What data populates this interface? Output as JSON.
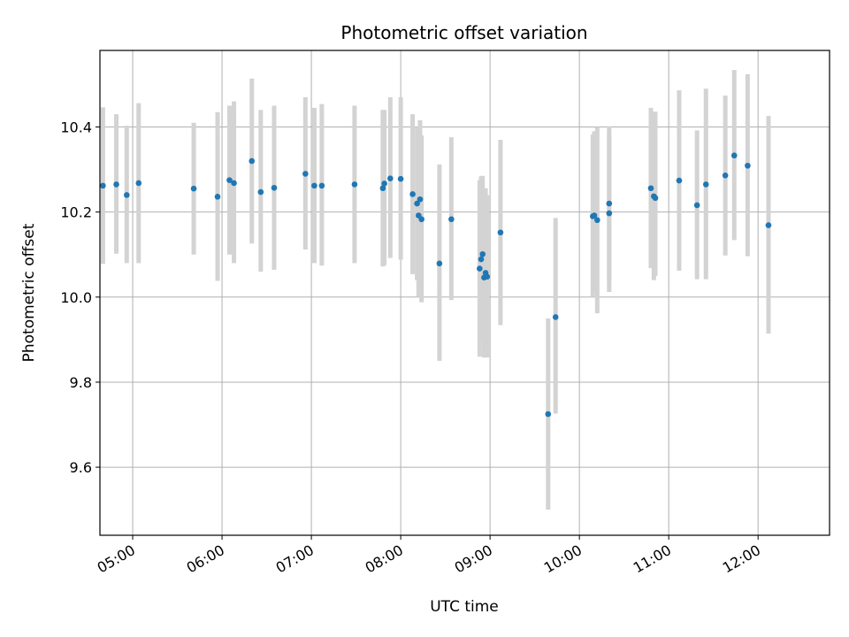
{
  "chart_data": {
    "type": "scatter",
    "title": "Photometric offset variation",
    "xlabel": "UTC time",
    "ylabel": "Photometric offset",
    "xlim": [
      "04:38",
      "12:48"
    ],
    "ylim": [
      9.44,
      10.58
    ],
    "x_ticks": [
      "05:00",
      "06:00",
      "07:00",
      "08:00",
      "09:00",
      "10:00",
      "11:00",
      "12:00"
    ],
    "y_ticks": [
      9.6,
      9.8,
      10.0,
      10.2,
      10.4
    ],
    "y_tick_labels": [
      "9.6",
      "9.8",
      "10.0",
      "10.2",
      "10.4"
    ],
    "grid": true,
    "colors": {
      "point": "#1f77b4",
      "errorbar": "#d3d3d3",
      "grid": "#b0b0b0"
    },
    "series": [
      {
        "x": [
          "04:40",
          "04:49",
          "04:56",
          "05:04",
          "05:41",
          "05:57",
          "06:05",
          "06:08",
          "06:20",
          "06:26",
          "06:35",
          "06:56",
          "07:02",
          "07:07",
          "07:29",
          "07:48",
          "07:49",
          "07:53",
          "08:00",
          "08:08",
          "08:11",
          "08:12",
          "08:13",
          "08:14",
          "08:26",
          "08:34",
          "08:53",
          "08:54",
          "08:55",
          "08:56",
          "08:57",
          "08:58",
          "09:07",
          "09:39",
          "09:44",
          "10:09",
          "10:10",
          "10:12",
          "10:20",
          "10:20",
          "10:48",
          "10:50",
          "10:51",
          "11:07",
          "11:19",
          "11:25",
          "11:38",
          "11:44",
          "11:53",
          "12:07"
        ],
        "y": [
          10.262,
          10.265,
          10.24,
          10.268,
          10.255,
          10.236,
          10.275,
          10.268,
          10.32,
          10.247,
          10.257,
          10.29,
          10.262,
          10.262,
          10.265,
          10.256,
          10.267,
          10.279,
          10.278,
          10.242,
          10.22,
          10.192,
          10.23,
          10.183,
          10.079,
          10.183,
          10.067,
          10.089,
          10.101,
          10.046,
          10.057,
          10.048,
          10.152,
          9.725,
          9.953,
          10.19,
          10.192,
          10.181,
          10.22,
          10.197,
          10.256,
          10.237,
          10.233,
          10.274,
          10.216,
          10.265,
          10.286,
          10.333,
          10.309,
          10.169
        ],
        "y_low": [
          10.078,
          10.102,
          10.08,
          10.08,
          10.1,
          10.038,
          10.1,
          10.08,
          10.126,
          10.06,
          10.064,
          10.112,
          10.08,
          10.074,
          10.08,
          10.072,
          10.075,
          10.092,
          10.088,
          10.054,
          10.04,
          10.0,
          10.024,
          9.988,
          9.85,
          9.993,
          9.86,
          9.9,
          9.916,
          9.858,
          9.87,
          9.858,
          9.934,
          9.5,
          9.726,
          10.0,
          10.012,
          9.962,
          10.04,
          10.012,
          10.068,
          10.04,
          10.05,
          10.062,
          10.042,
          10.042,
          10.098,
          10.134,
          10.096,
          9.914
        ],
        "y_high": [
          10.446,
          10.43,
          10.403,
          10.456,
          10.41,
          10.435,
          10.45,
          10.46,
          10.514,
          10.44,
          10.45,
          10.47,
          10.445,
          10.454,
          10.45,
          10.44,
          10.44,
          10.47,
          10.47,
          10.43,
          10.4,
          10.385,
          10.416,
          10.38,
          10.312,
          10.376,
          10.275,
          10.284,
          10.285,
          10.238,
          10.256,
          10.24,
          10.37,
          9.95,
          10.186,
          10.382,
          10.39,
          10.4,
          10.402,
          10.382,
          10.445,
          10.43,
          10.436,
          10.486,
          10.392,
          10.49,
          10.474,
          10.534,
          10.524,
          10.426
        ]
      }
    ]
  }
}
